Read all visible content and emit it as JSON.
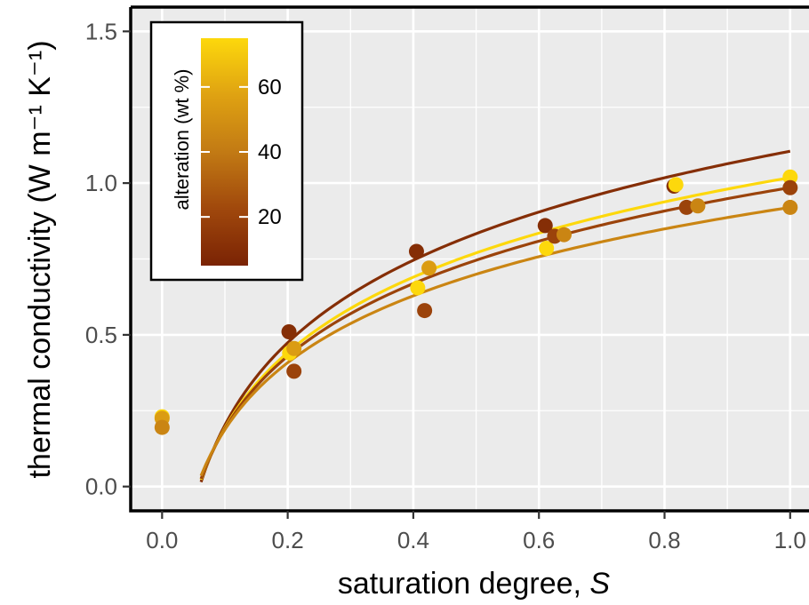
{
  "chart_data": {
    "type": "scatter",
    "xlabel": "saturation degree, ",
    "xlabel_italic": "S",
    "ylabel": "thermal conductivity ",
    "ylabel_unit": "(W m⁻¹ K⁻¹)",
    "xlim": [
      -0.05,
      1.03
    ],
    "ylim": [
      -0.08,
      1.58
    ],
    "x_ticks": [
      {
        "value": 0.0,
        "label": "0.0"
      },
      {
        "value": 0.2,
        "label": "0.2"
      },
      {
        "value": 0.4,
        "label": "0.4"
      },
      {
        "value": 0.6,
        "label": "0.6"
      },
      {
        "value": 0.8,
        "label": "0.8"
      },
      {
        "value": 1.0,
        "label": "1.0"
      }
    ],
    "y_ticks": [
      {
        "value": 0.0,
        "label": "0.0"
      },
      {
        "value": 0.5,
        "label": "0.5"
      },
      {
        "value": 1.0,
        "label": "1.0"
      },
      {
        "value": 1.5,
        "label": "1.5"
      }
    ],
    "grid": true,
    "background": "#ebebeb",
    "colorbar": {
      "title": "alteration (wt %)",
      "placement": "top-left",
      "range": [
        5,
        75
      ],
      "colors": [
        "#7a2304",
        "#a0480c",
        "#c27a14",
        "#dfa212",
        "#fdd80c"
      ],
      "ticks": [
        {
          "value": 20,
          "label": "20"
        },
        {
          "value": 40,
          "label": "40"
        },
        {
          "value": 60,
          "label": "60"
        }
      ]
    },
    "points": [
      {
        "x": 0.0,
        "y": 0.23,
        "alteration": 75
      },
      {
        "x": 0.0,
        "y": 0.225,
        "alteration": 55
      },
      {
        "x": 0.0,
        "y": 0.195,
        "alteration": 45
      },
      {
        "x": 0.202,
        "y": 0.51,
        "alteration": 10
      },
      {
        "x": 0.203,
        "y": 0.44,
        "alteration": 75
      },
      {
        "x": 0.21,
        "y": 0.455,
        "alteration": 55
      },
      {
        "x": 0.21,
        "y": 0.38,
        "alteration": 20
      },
      {
        "x": 0.405,
        "y": 0.775,
        "alteration": 10
      },
      {
        "x": 0.407,
        "y": 0.655,
        "alteration": 75
      },
      {
        "x": 0.418,
        "y": 0.58,
        "alteration": 20
      },
      {
        "x": 0.425,
        "y": 0.72,
        "alteration": 55
      },
      {
        "x": 0.61,
        "y": 0.86,
        "alteration": 10
      },
      {
        "x": 0.612,
        "y": 0.785,
        "alteration": 75
      },
      {
        "x": 0.625,
        "y": 0.825,
        "alteration": 20
      },
      {
        "x": 0.64,
        "y": 0.83,
        "alteration": 45
      },
      {
        "x": 0.815,
        "y": 0.99,
        "alteration": 10
      },
      {
        "x": 0.818,
        "y": 0.995,
        "alteration": 75
      },
      {
        "x": 0.835,
        "y": 0.92,
        "alteration": 20
      },
      {
        "x": 0.853,
        "y": 0.925,
        "alteration": 45
      },
      {
        "x": 1.0,
        "y": 1.02,
        "alteration": 75
      },
      {
        "x": 1.0,
        "y": 0.985,
        "alteration": 20
      },
      {
        "x": 1.0,
        "y": 0.92,
        "alteration": 45
      }
    ],
    "fits": [
      {
        "alteration": 10,
        "a": 1.105,
        "b": 0.392,
        "x_range": [
          0.062,
          1.0
        ]
      },
      {
        "alteration": 75,
        "a": 1.018,
        "b": 0.358,
        "x_range": [
          0.062,
          1.0
        ]
      },
      {
        "alteration": 20,
        "a": 0.985,
        "b": 0.345,
        "x_range": [
          0.062,
          1.0
        ]
      },
      {
        "alteration": 45,
        "a": 0.92,
        "b": 0.318,
        "x_range": [
          0.062,
          1.0
        ]
      }
    ]
  }
}
